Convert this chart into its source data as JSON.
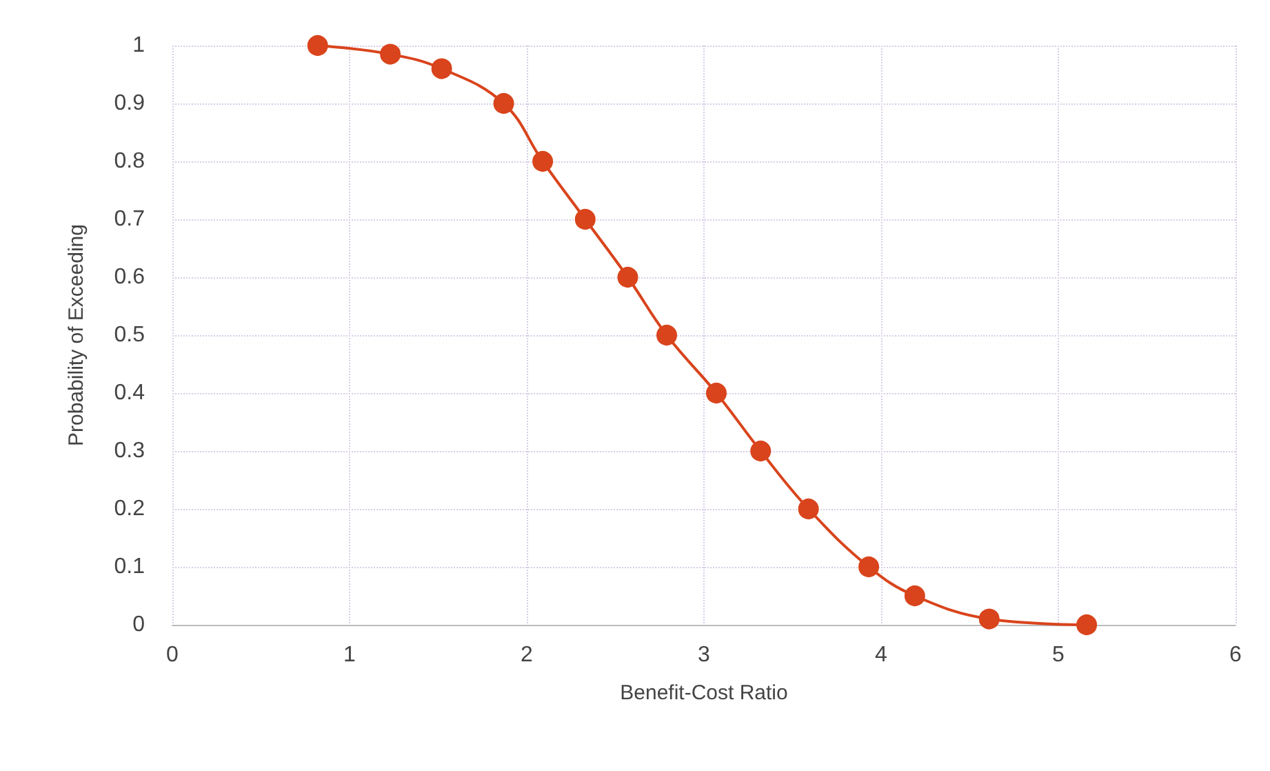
{
  "chart_data": {
    "type": "line",
    "xlabel": "Benefit-Cost Ratio",
    "ylabel": "Probability of Exceeding",
    "x": [
      0.82,
      1.23,
      1.52,
      1.87,
      2.09,
      2.33,
      2.57,
      2.79,
      3.07,
      3.32,
      3.59,
      3.93,
      4.19,
      4.61,
      5.16
    ],
    "series": [
      {
        "color": "#d9441c",
        "values": [
          1.0,
          0.985,
          0.96,
          0.9,
          0.8,
          0.7,
          0.6,
          0.5,
          0.4,
          0.3,
          0.2,
          0.1,
          0.05,
          0.01,
          0.0
        ]
      }
    ],
    "xlim": [
      0,
      6
    ],
    "xticks": [
      0,
      1,
      2,
      3,
      4,
      5,
      6
    ],
    "ylim": [
      0,
      1
    ],
    "yticks": [
      0,
      0.1,
      0.2,
      0.3,
      0.4,
      0.5,
      0.6,
      0.7,
      0.8,
      0.9,
      1
    ],
    "grid": true,
    "marker": "circle",
    "line_style": "solid"
  }
}
